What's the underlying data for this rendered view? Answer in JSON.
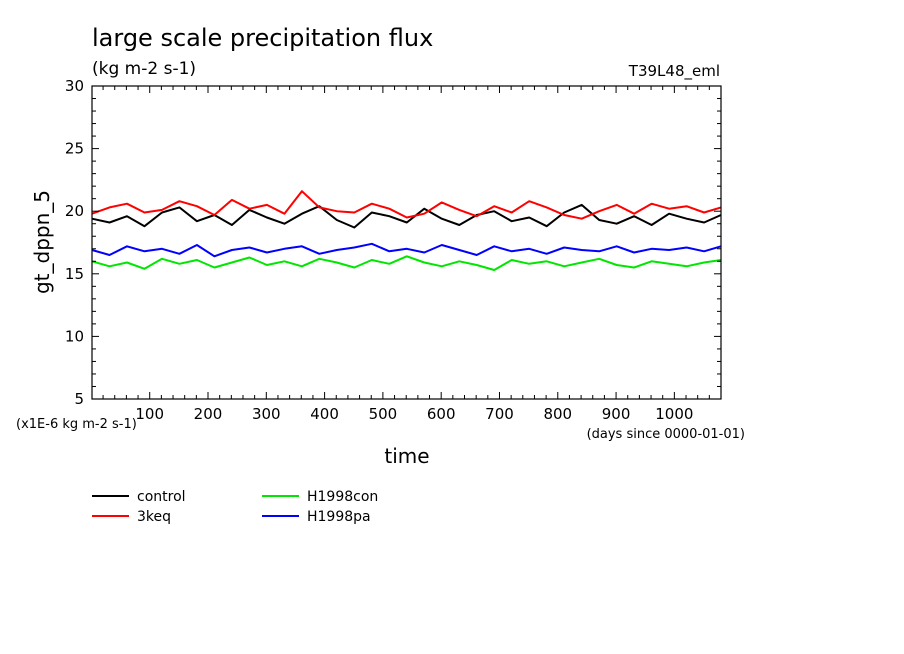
{
  "chart_data": {
    "type": "line",
    "title": "large scale precipitation flux",
    "subtitle": "(kg m-2 s-1)",
    "run_label": "T39L48_eml",
    "xlabel": "time",
    "ylabel": "gt_dppn_5",
    "x_units": "(days since 0000-01-01)",
    "y_units": "(x1E-6 kg m-2 s-1)",
    "xlim": [
      1,
      1080
    ],
    "ylim": [
      5,
      30
    ],
    "x_ticks": [
      100,
      200,
      300,
      400,
      500,
      600,
      700,
      800,
      900,
      1000
    ],
    "y_ticks": [
      5,
      10,
      15,
      20,
      25,
      30
    ],
    "legend_position": "bottom-left",
    "series": [
      {
        "name": "control",
        "color": "#000000",
        "x": [
          1,
          31,
          61,
          91,
          121,
          151,
          181,
          211,
          241,
          271,
          301,
          331,
          361,
          391,
          421,
          451,
          481,
          511,
          541,
          571,
          601,
          631,
          661,
          691,
          721,
          751,
          781,
          811,
          841,
          871,
          901,
          931,
          961,
          991,
          1021,
          1051,
          1080
        ],
        "values": [
          19.4,
          19.1,
          19.6,
          18.8,
          19.9,
          20.3,
          19.2,
          19.7,
          18.9,
          20.1,
          19.5,
          19.0,
          19.8,
          20.4,
          19.3,
          18.7,
          19.9,
          19.6,
          19.1,
          20.2,
          19.4,
          18.9,
          19.7,
          20.0,
          19.2,
          19.5,
          18.8,
          19.9,
          20.5,
          19.3,
          19.0,
          19.6,
          18.9,
          19.8,
          19.4,
          19.1,
          19.7
        ]
      },
      {
        "name": "3keq",
        "color": "#ff0000",
        "x": [
          1,
          31,
          61,
          91,
          121,
          151,
          181,
          211,
          241,
          271,
          301,
          331,
          361,
          391,
          421,
          451,
          481,
          511,
          541,
          571,
          601,
          631,
          661,
          691,
          721,
          751,
          781,
          811,
          841,
          871,
          901,
          931,
          961,
          991,
          1021,
          1051,
          1080
        ],
        "values": [
          19.8,
          20.3,
          20.6,
          19.9,
          20.1,
          20.8,
          20.4,
          19.7,
          20.9,
          20.2,
          20.5,
          19.8,
          21.6,
          20.3,
          20.0,
          19.9,
          20.6,
          20.2,
          19.5,
          19.8,
          20.7,
          20.1,
          19.6,
          20.4,
          19.9,
          20.8,
          20.3,
          19.7,
          19.4,
          20.0,
          20.5,
          19.8,
          20.6,
          20.2,
          20.4,
          19.9,
          20.3
        ]
      },
      {
        "name": "H1998con",
        "color": "#00e600",
        "x": [
          1,
          31,
          61,
          91,
          121,
          151,
          181,
          211,
          241,
          271,
          301,
          331,
          361,
          391,
          421,
          451,
          481,
          511,
          541,
          571,
          601,
          631,
          661,
          691,
          721,
          751,
          781,
          811,
          841,
          871,
          901,
          931,
          961,
          991,
          1021,
          1051,
          1080
        ],
        "values": [
          16.0,
          15.6,
          15.9,
          15.4,
          16.2,
          15.8,
          16.1,
          15.5,
          15.9,
          16.3,
          15.7,
          16.0,
          15.6,
          16.2,
          15.9,
          15.5,
          16.1,
          15.8,
          16.4,
          15.9,
          15.6,
          16.0,
          15.7,
          15.3,
          16.1,
          15.8,
          16.0,
          15.6,
          15.9,
          16.2,
          15.7,
          15.5,
          16.0,
          15.8,
          15.6,
          15.9,
          16.1
        ]
      },
      {
        "name": "H1998pa",
        "color": "#0000ff",
        "x": [
          1,
          31,
          61,
          91,
          121,
          151,
          181,
          211,
          241,
          271,
          301,
          331,
          361,
          391,
          421,
          451,
          481,
          511,
          541,
          571,
          601,
          631,
          661,
          691,
          721,
          751,
          781,
          811,
          841,
          871,
          901,
          931,
          961,
          991,
          1021,
          1051,
          1080
        ],
        "values": [
          16.9,
          16.5,
          17.2,
          16.8,
          17.0,
          16.6,
          17.3,
          16.4,
          16.9,
          17.1,
          16.7,
          17.0,
          17.2,
          16.6,
          16.9,
          17.1,
          17.4,
          16.8,
          17.0,
          16.7,
          17.3,
          16.9,
          16.5,
          17.2,
          16.8,
          17.0,
          16.6,
          17.1,
          16.9,
          16.8,
          17.2,
          16.7,
          17.0,
          16.9,
          17.1,
          16.8,
          17.2
        ]
      }
    ]
  }
}
